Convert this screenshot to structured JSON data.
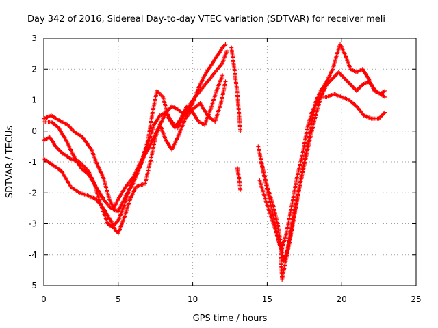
{
  "chart_data": {
    "type": "scatter",
    "title": "Day 342 of 2016, Sidereal Day-to-day VTEC variation (SDTVAR) for receiver meli",
    "xlabel": "GPS time / hours",
    "ylabel": "SDTVAR / TECUs",
    "xlim": [
      0,
      25
    ],
    "ylim": [
      -5,
      3
    ],
    "xticks": [
      0,
      5,
      10,
      15,
      20,
      25
    ],
    "yticks": [
      -5,
      -4,
      -3,
      -2,
      -1,
      0,
      1,
      2,
      3
    ],
    "grid": true,
    "marker": "+",
    "color": "#ff0000",
    "series": [
      {
        "segments": [
          [
            [
              0.0,
              0.4
            ],
            [
              0.5,
              0.5
            ],
            [
              1.2,
              0.3
            ],
            [
              1.6,
              0.2
            ],
            [
              2.0,
              0.0
            ],
            [
              2.6,
              -0.2
            ],
            [
              3.2,
              -0.6
            ],
            [
              3.6,
              -1.1
            ],
            [
              4.0,
              -1.5
            ],
            [
              4.4,
              -2.2
            ],
            [
              4.7,
              -2.5
            ],
            [
              5.0,
              -2.2
            ],
            [
              5.5,
              -1.8
            ],
            [
              6.0,
              -1.5
            ],
            [
              6.5,
              -1.0
            ],
            [
              7.0,
              -0.6
            ],
            [
              7.4,
              -0.2
            ],
            [
              7.8,
              0.2
            ],
            [
              8.2,
              0.6
            ],
            [
              8.6,
              0.8
            ],
            [
              9.0,
              0.7
            ],
            [
              9.5,
              0.5
            ],
            [
              10.0,
              0.9
            ],
            [
              10.4,
              1.4
            ],
            [
              10.8,
              1.8
            ],
            [
              11.2,
              2.1
            ],
            [
              11.6,
              2.4
            ],
            [
              12.0,
              2.7
            ],
            [
              12.2,
              2.8
            ]
          ],
          [
            [
              12.6,
              2.7
            ],
            [
              12.8,
              2.0
            ],
            [
              13.0,
              1.2
            ],
            [
              13.1,
              0.6
            ],
            [
              13.2,
              0.0
            ]
          ]
        ]
      },
      {
        "segments": [
          [
            [
              0.0,
              -0.3
            ],
            [
              0.4,
              -0.2
            ],
            [
              0.8,
              -0.5
            ],
            [
              1.2,
              -0.7
            ],
            [
              1.8,
              -0.9
            ],
            [
              2.4,
              -1.0
            ],
            [
              3.0,
              -1.3
            ],
            [
              3.4,
              -1.7
            ],
            [
              3.7,
              -2.2
            ],
            [
              4.0,
              -2.6
            ],
            [
              4.3,
              -3.0
            ],
            [
              4.6,
              -3.1
            ],
            [
              5.0,
              -2.9
            ],
            [
              5.4,
              -2.4
            ],
            [
              5.8,
              -1.8
            ],
            [
              6.2,
              -1.4
            ],
            [
              6.6,
              -1.0
            ],
            [
              7.0,
              -0.4
            ],
            [
              7.4,
              0.2
            ],
            [
              7.8,
              0.5
            ],
            [
              8.2,
              0.6
            ],
            [
              8.6,
              0.3
            ],
            [
              9.0,
              0.1
            ],
            [
              9.5,
              0.6
            ],
            [
              10.0,
              1.0
            ],
            [
              10.5,
              1.3
            ],
            [
              11.0,
              1.6
            ],
            [
              11.5,
              1.9
            ],
            [
              12.0,
              2.2
            ],
            [
              12.3,
              2.6
            ]
          ],
          [
            [
              13.0,
              -1.2
            ],
            [
              13.1,
              -1.5
            ],
            [
              13.2,
              -1.9
            ]
          ],
          [
            [
              14.4,
              -0.5
            ],
            [
              14.7,
              -1.2
            ],
            [
              15.0,
              -1.8
            ],
            [
              15.4,
              -2.4
            ],
            [
              15.7,
              -3.0
            ],
            [
              15.9,
              -3.6
            ],
            [
              16.1,
              -4.2
            ],
            [
              16.3,
              -4.0
            ],
            [
              16.6,
              -3.2
            ],
            [
              17.0,
              -2.2
            ],
            [
              17.4,
              -1.3
            ],
            [
              17.8,
              -0.4
            ],
            [
              18.2,
              0.4
            ],
            [
              18.6,
              1.1
            ],
            [
              19.0,
              1.5
            ],
            [
              19.4,
              1.7
            ],
            [
              19.8,
              1.9
            ],
            [
              20.2,
              1.7
            ],
            [
              20.6,
              1.5
            ],
            [
              21.0,
              1.3
            ],
            [
              21.4,
              1.5
            ],
            [
              21.8,
              1.6
            ],
            [
              22.3,
              1.3
            ],
            [
              22.9,
              1.1
            ]
          ]
        ]
      },
      {
        "segments": [
          [
            [
              0.0,
              -0.9
            ],
            [
              0.6,
              -1.1
            ],
            [
              1.2,
              -1.3
            ],
            [
              1.8,
              -1.8
            ],
            [
              2.4,
              -2.0
            ],
            [
              3.0,
              -2.1
            ],
            [
              3.5,
              -2.2
            ],
            [
              4.0,
              -2.5
            ],
            [
              4.5,
              -2.9
            ],
            [
              4.8,
              -3.2
            ],
            [
              5.0,
              -3.3
            ],
            [
              5.4,
              -2.8
            ],
            [
              5.8,
              -2.2
            ],
            [
              6.2,
              -1.8
            ],
            [
              6.8,
              -1.7
            ],
            [
              7.2,
              -0.9
            ],
            [
              7.5,
              -0.2
            ],
            [
              7.8,
              0.2
            ],
            [
              8.2,
              -0.3
            ],
            [
              8.6,
              -0.6
            ],
            [
              9.0,
              -0.2
            ],
            [
              9.5,
              0.4
            ],
            [
              10.0,
              0.7
            ],
            [
              10.5,
              0.9
            ],
            [
              11.0,
              0.5
            ],
            [
              11.5,
              0.3
            ],
            [
              11.9,
              0.9
            ],
            [
              12.2,
              1.6
            ]
          ],
          [
            [
              14.6,
              -1.0
            ],
            [
              15.0,
              -1.9
            ],
            [
              15.3,
              -2.5
            ],
            [
              15.6,
              -3.2
            ],
            [
              15.9,
              -3.8
            ],
            [
              16.0,
              -4.8
            ],
            [
              16.2,
              -4.3
            ],
            [
              16.5,
              -3.6
            ],
            [
              16.8,
              -2.8
            ],
            [
              17.1,
              -2.0
            ],
            [
              17.4,
              -1.2
            ],
            [
              17.7,
              -0.5
            ],
            [
              18.0,
              0.3
            ],
            [
              18.3,
              1.0
            ],
            [
              18.6,
              1.3
            ],
            [
              19.0,
              1.6
            ],
            [
              19.4,
              2.0
            ],
            [
              19.7,
              2.5
            ],
            [
              19.9,
              2.8
            ],
            [
              20.2,
              2.5
            ],
            [
              20.6,
              2.0
            ],
            [
              21.0,
              1.9
            ],
            [
              21.4,
              2.0
            ],
            [
              21.8,
              1.7
            ],
            [
              22.2,
              1.3
            ],
            [
              22.6,
              1.2
            ],
            [
              22.9,
              1.3
            ]
          ]
        ]
      },
      {
        "segments": [
          [
            [
              0.0,
              0.3
            ],
            [
              0.5,
              0.3
            ],
            [
              1.0,
              0.1
            ],
            [
              1.5,
              -0.3
            ],
            [
              2.0,
              -0.8
            ],
            [
              2.5,
              -1.2
            ],
            [
              3.0,
              -1.4
            ],
            [
              3.5,
              -1.8
            ],
            [
              4.0,
              -2.2
            ],
            [
              4.5,
              -2.5
            ],
            [
              5.0,
              -2.6
            ],
            [
              5.5,
              -2.1
            ],
            [
              6.0,
              -1.7
            ],
            [
              6.5,
              -1.1
            ],
            [
              7.0,
              -0.3
            ],
            [
              7.3,
              0.6
            ],
            [
              7.6,
              1.3
            ],
            [
              8.0,
              1.1
            ],
            [
              8.4,
              0.4
            ],
            [
              8.8,
              0.1
            ],
            [
              9.2,
              0.4
            ],
            [
              9.6,
              0.8
            ],
            [
              10.0,
              0.6
            ],
            [
              10.4,
              0.3
            ],
            [
              10.8,
              0.2
            ],
            [
              11.2,
              0.7
            ],
            [
              11.6,
              1.3
            ],
            [
              12.0,
              1.8
            ]
          ],
          [
            [
              14.5,
              -1.6
            ],
            [
              15.0,
              -2.4
            ],
            [
              15.5,
              -3.1
            ],
            [
              15.8,
              -3.6
            ],
            [
              16.0,
              -3.8
            ],
            [
              16.3,
              -3.3
            ],
            [
              16.7,
              -2.3
            ],
            [
              17.0,
              -1.5
            ],
            [
              17.4,
              -0.7
            ],
            [
              17.7,
              0.1
            ],
            [
              18.0,
              0.6
            ],
            [
              18.3,
              0.9
            ],
            [
              18.6,
              1.1
            ],
            [
              19.0,
              1.1
            ],
            [
              19.5,
              1.2
            ],
            [
              20.0,
              1.1
            ],
            [
              20.5,
              1.0
            ],
            [
              21.0,
              0.8
            ],
            [
              21.5,
              0.5
            ],
            [
              22.0,
              0.4
            ],
            [
              22.5,
              0.4
            ],
            [
              22.9,
              0.6
            ]
          ]
        ]
      }
    ]
  }
}
